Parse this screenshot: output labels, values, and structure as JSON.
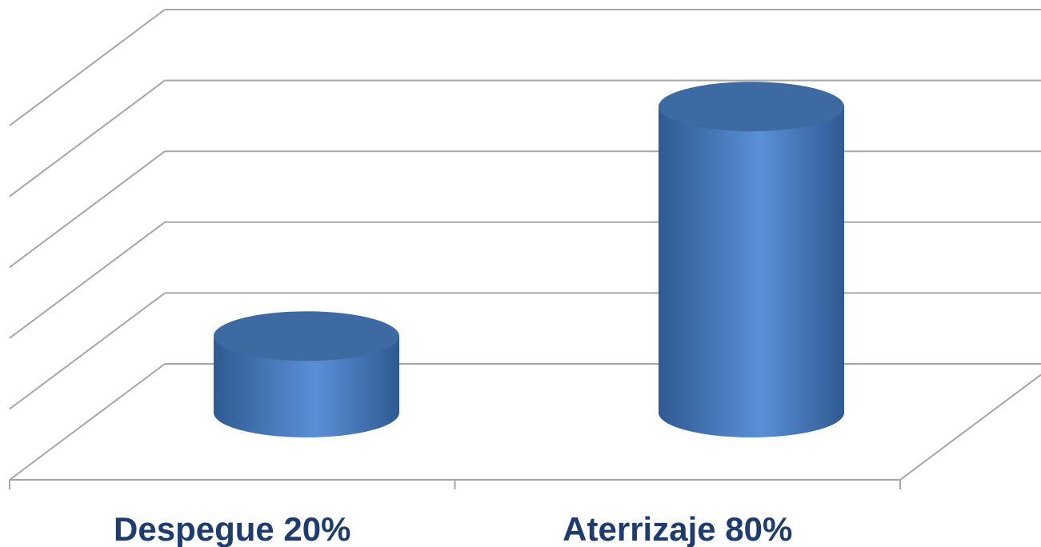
{
  "chart_data": {
    "type": "bar",
    "style": "3d-cylinder",
    "categories": [
      "Despegue 20%",
      "Aterrizaje 80%"
    ],
    "values": [
      20,
      80
    ],
    "ylim": [
      0,
      100
    ],
    "grid": true,
    "legend": "none",
    "title": "",
    "xlabel": "",
    "ylabel": ""
  },
  "colors": {
    "bar_light": "#5a8fd6",
    "bar_mid": "#4a7cc0",
    "bar_dark": "#2f5a93",
    "bar_top": "#3e6aa3",
    "grid": "#a6a6a6",
    "label": "#1f3c6e"
  }
}
